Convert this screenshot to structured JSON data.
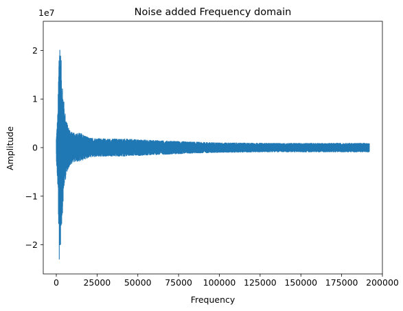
{
  "chart_data": {
    "type": "line",
    "title": "Noise added Frequency domain",
    "xlabel": "Frequency",
    "ylabel": "Amplitude",
    "y_scale_label": "1e7",
    "y_multiplier": 10000000,
    "xlim": [
      -8000,
      200000
    ],
    "ylim": [
      -26000000.0,
      26000000.0
    ],
    "x_ticks": [
      0,
      25000,
      50000,
      75000,
      100000,
      125000,
      150000,
      175000,
      200000
    ],
    "x_tick_labels": [
      "0",
      "25000",
      "50000",
      "75000",
      "100000",
      "125000",
      "150000",
      "175000",
      "200000"
    ],
    "y_ticks": [
      -20000000.0,
      -10000000.0,
      0,
      10000000.0,
      20000000.0
    ],
    "y_tick_labels": [
      "−2",
      "−1",
      "0",
      "1",
      "2"
    ],
    "grid": false,
    "series": [
      {
        "color": "#1f77b4",
        "x_range": [
          0,
          192000
        ],
        "envelope_x": [
          0,
          1000,
          1800,
          2500,
          3500,
          5000,
          7000,
          10000,
          15000,
          20000,
          30000,
          40000,
          60000,
          80000,
          100000,
          130000,
          160000,
          192000
        ],
        "envelope_max": [
          2000000,
          8000000,
          24500000,
          21000000,
          15000000,
          8000000,
          4500000,
          3000000,
          3000000,
          2000000,
          1800000,
          1800000,
          1500000,
          1200000,
          1000000,
          900000,
          900000,
          900000
        ],
        "envelope_min": [
          -2200000,
          -9000000,
          -23800000,
          -21000000,
          -15000000,
          -7500000,
          -4500000,
          -3000000,
          -2800000,
          -2000000,
          -1800000,
          -1800000,
          -1500000,
          -1200000,
          -1000000,
          -900000,
          -900000,
          -900000
        ]
      }
    ]
  }
}
